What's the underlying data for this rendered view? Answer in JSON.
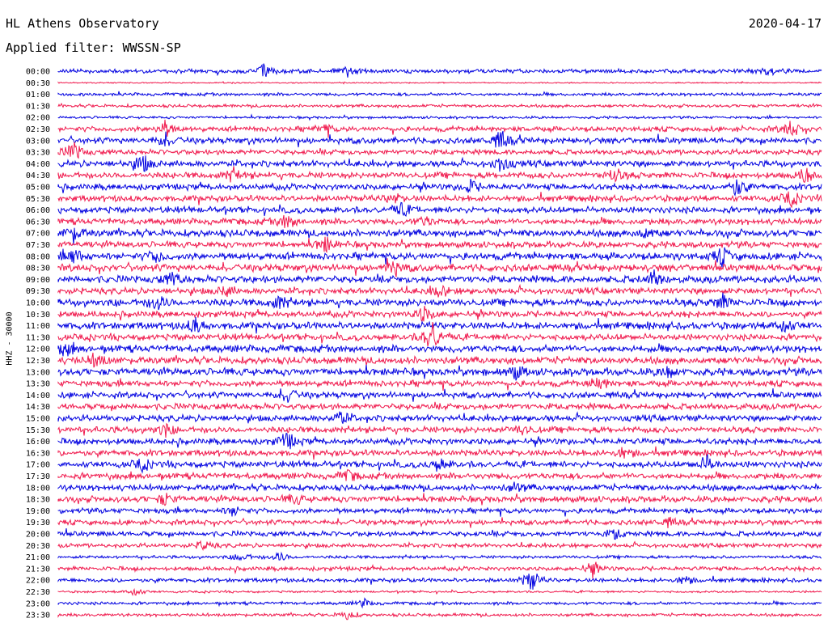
{
  "header": {
    "station": "HL Athens Observatory",
    "date": "2020-04-17",
    "filter_label": "Applied filter: WWSSN-SP"
  },
  "axis": {
    "channel_label": "HHZ - 30000"
  },
  "colors": {
    "blue": "#0000e0",
    "red": "#f0194d"
  },
  "chart_data": {
    "type": "helicorder",
    "title": "HL Athens Observatory",
    "date": "2020-04-17",
    "filter": "WWSSN-SP",
    "ylabel": "HHZ - 30000",
    "rows": [
      {
        "label": "00:00",
        "color": "#0000e0",
        "amp": 2,
        "events": [
          [
            0.27,
            9
          ],
          [
            0.38,
            6
          ],
          [
            0.93,
            5
          ]
        ]
      },
      {
        "label": "00:30",
        "color": "#f0194d",
        "amp": 0.6,
        "events": []
      },
      {
        "label": "01:00",
        "color": "#0000e0",
        "amp": 1.5,
        "events": []
      },
      {
        "label": "01:30",
        "color": "#f0194d",
        "amp": 1.5,
        "events": []
      },
      {
        "label": "02:00",
        "color": "#0000e0",
        "amp": 1.2,
        "events": []
      },
      {
        "label": "02:30",
        "color": "#f0194d",
        "amp": 2.5,
        "events": [
          [
            0.14,
            10
          ],
          [
            0.35,
            6
          ],
          [
            0.96,
            11
          ]
        ]
      },
      {
        "label": "03:00",
        "color": "#0000e0",
        "amp": 3,
        "events": [
          [
            0.14,
            8
          ],
          [
            0.58,
            12
          ]
        ]
      },
      {
        "label": "03:30",
        "color": "#f0194d",
        "amp": 2.5,
        "events": [
          [
            0.02,
            12
          ]
        ]
      },
      {
        "label": "04:00",
        "color": "#0000e0",
        "amp": 3,
        "events": [
          [
            0.11,
            12
          ],
          [
            0.58,
            10
          ]
        ]
      },
      {
        "label": "04:30",
        "color": "#f0194d",
        "amp": 3,
        "events": [
          [
            0.23,
            9
          ],
          [
            0.73,
            8
          ],
          [
            0.98,
            10
          ]
        ]
      },
      {
        "label": "05:00",
        "color": "#0000e0",
        "amp": 3,
        "events": [
          [
            0.54,
            8
          ],
          [
            0.89,
            12
          ]
        ]
      },
      {
        "label": "05:30",
        "color": "#f0194d",
        "amp": 3,
        "events": [
          [
            0.44,
            6
          ],
          [
            0.96,
            9
          ]
        ]
      },
      {
        "label": "06:00",
        "color": "#0000e0",
        "amp": 3,
        "events": [
          [
            0.45,
            8
          ]
        ]
      },
      {
        "label": "06:30",
        "color": "#f0194d",
        "amp": 3,
        "events": [
          [
            0.3,
            9
          ],
          [
            0.48,
            6
          ]
        ]
      },
      {
        "label": "07:00",
        "color": "#0000e0",
        "amp": 3.5,
        "events": [
          [
            0.02,
            10
          ],
          [
            0.77,
            7
          ]
        ]
      },
      {
        "label": "07:30",
        "color": "#f0194d",
        "amp": 3,
        "events": [
          [
            0.35,
            9
          ]
        ]
      },
      {
        "label": "08:00",
        "color": "#0000e0",
        "amp": 3.5,
        "events": [
          [
            0.02,
            10
          ],
          [
            0.13,
            7
          ],
          [
            0.87,
            11
          ]
        ]
      },
      {
        "label": "08:30",
        "color": "#f0194d",
        "amp": 3.5,
        "events": [
          [
            0.44,
            10
          ]
        ]
      },
      {
        "label": "09:00",
        "color": "#0000e0",
        "amp": 3.5,
        "events": [
          [
            0.15,
            8
          ],
          [
            0.78,
            10
          ]
        ]
      },
      {
        "label": "09:30",
        "color": "#f0194d",
        "amp": 3,
        "events": [
          [
            0.22,
            7
          ],
          [
            0.5,
            8
          ]
        ]
      },
      {
        "label": "10:00",
        "color": "#0000e0",
        "amp": 3.5,
        "events": [
          [
            0.13,
            10
          ],
          [
            0.29,
            8
          ],
          [
            0.87,
            9
          ]
        ]
      },
      {
        "label": "10:30",
        "color": "#f0194d",
        "amp": 3,
        "events": [
          [
            0.48,
            10
          ]
        ]
      },
      {
        "label": "11:00",
        "color": "#0000e0",
        "amp": 3.5,
        "events": [
          [
            0.18,
            9
          ],
          [
            0.95,
            10
          ]
        ]
      },
      {
        "label": "11:30",
        "color": "#f0194d",
        "amp": 3,
        "events": [
          [
            0.49,
            20
          ]
        ]
      },
      {
        "label": "12:00",
        "color": "#0000e0",
        "amp": 3.5,
        "events": [
          [
            0.01,
            8
          ]
        ]
      },
      {
        "label": "12:30",
        "color": "#f0194d",
        "amp": 3.5,
        "events": [
          [
            0.05,
            9
          ]
        ]
      },
      {
        "label": "13:00",
        "color": "#0000e0",
        "amp": 3.5,
        "events": [
          [
            0.6,
            8
          ],
          [
            0.8,
            7
          ]
        ]
      },
      {
        "label": "13:30",
        "color": "#f0194d",
        "amp": 3,
        "events": [
          [
            0.71,
            8
          ]
        ]
      },
      {
        "label": "14:00",
        "color": "#0000e0",
        "amp": 3,
        "events": [
          [
            0.3,
            9
          ]
        ]
      },
      {
        "label": "14:30",
        "color": "#f0194d",
        "amp": 3,
        "events": []
      },
      {
        "label": "15:00",
        "color": "#0000e0",
        "amp": 3,
        "events": [
          [
            0.37,
            8
          ]
        ]
      },
      {
        "label": "15:30",
        "color": "#f0194d",
        "amp": 3,
        "events": [
          [
            0.14,
            8
          ],
          [
            0.61,
            7
          ]
        ]
      },
      {
        "label": "16:00",
        "color": "#0000e0",
        "amp": 3,
        "events": [
          [
            0.3,
            11
          ]
        ]
      },
      {
        "label": "16:30",
        "color": "#f0194d",
        "amp": 3,
        "events": [
          [
            0.74,
            7
          ]
        ]
      },
      {
        "label": "17:00",
        "color": "#0000e0",
        "amp": 3,
        "events": [
          [
            0.11,
            7
          ],
          [
            0.5,
            8
          ],
          [
            0.85,
            10
          ]
        ]
      },
      {
        "label": "17:30",
        "color": "#f0194d",
        "amp": 3,
        "events": [
          [
            0.38,
            7
          ]
        ]
      },
      {
        "label": "18:00",
        "color": "#0000e0",
        "amp": 3,
        "events": [
          [
            0.6,
            6
          ]
        ]
      },
      {
        "label": "18:30",
        "color": "#f0194d",
        "amp": 3,
        "events": [
          [
            0.14,
            7
          ],
          [
            0.31,
            6
          ]
        ]
      },
      {
        "label": "19:00",
        "color": "#0000e0",
        "amp": 2.5,
        "events": [
          [
            0.23,
            6
          ]
        ]
      },
      {
        "label": "19:30",
        "color": "#f0194d",
        "amp": 2.5,
        "events": [
          [
            0.8,
            5
          ]
        ]
      },
      {
        "label": "20:00",
        "color": "#0000e0",
        "amp": 2.5,
        "events": [
          [
            0.73,
            6
          ]
        ]
      },
      {
        "label": "20:30",
        "color": "#f0194d",
        "amp": 2,
        "events": [
          [
            0.19,
            6
          ]
        ]
      },
      {
        "label": "21:00",
        "color": "#0000e0",
        "amp": 1.5,
        "events": [
          [
            0.24,
            6
          ],
          [
            0.29,
            6
          ]
        ]
      },
      {
        "label": "21:30",
        "color": "#f0194d",
        "amp": 2,
        "events": [
          [
            0.7,
            10
          ]
        ]
      },
      {
        "label": "22:00",
        "color": "#0000e0",
        "amp": 2,
        "events": [
          [
            0.62,
            14
          ],
          [
            0.82,
            6
          ]
        ]
      },
      {
        "label": "22:30",
        "color": "#f0194d",
        "amp": 1,
        "events": [
          [
            0.1,
            6
          ]
        ]
      },
      {
        "label": "23:00",
        "color": "#0000e0",
        "amp": 1.5,
        "events": [
          [
            0.4,
            5
          ]
        ]
      },
      {
        "label": "23:30",
        "color": "#f0194d",
        "amp": 1.5,
        "events": [
          [
            0.38,
            6
          ]
        ]
      }
    ]
  }
}
